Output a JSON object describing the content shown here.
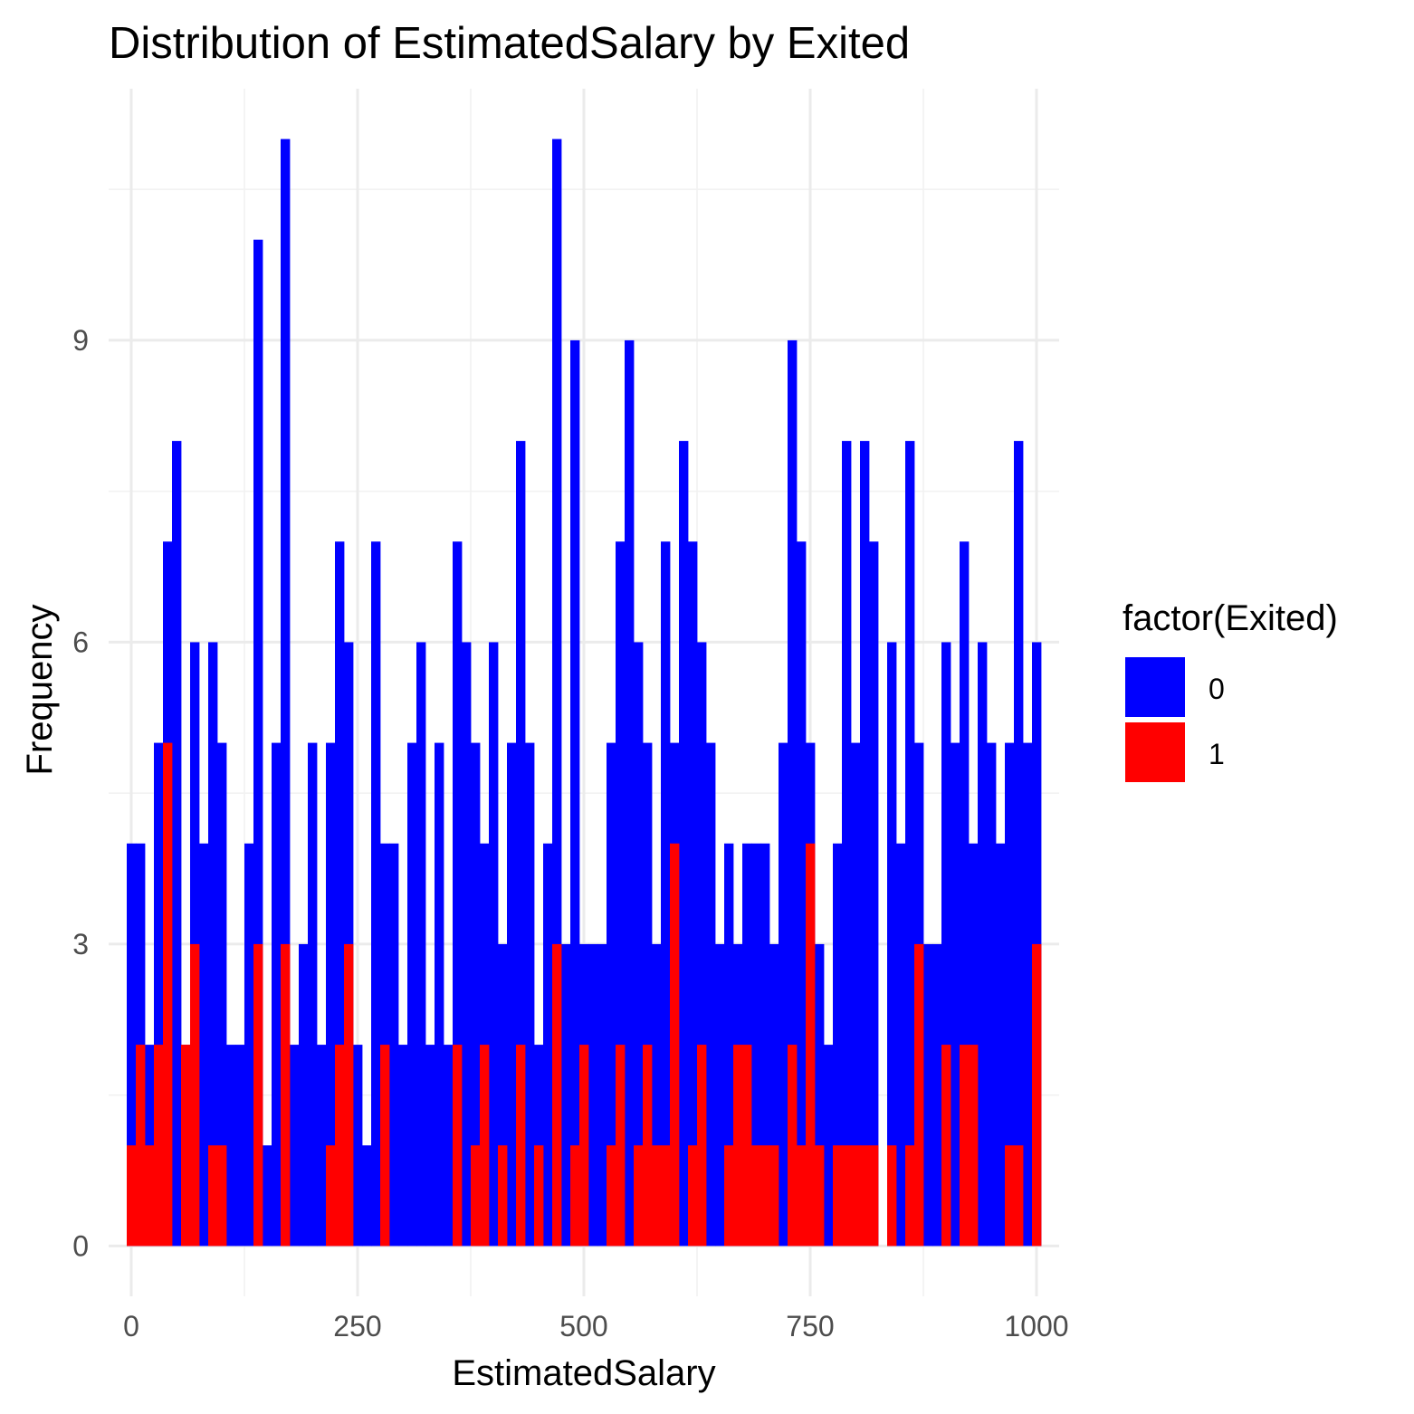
{
  "chart_data": {
    "type": "bar",
    "title": "Distribution of EstimatedSalary by Exited",
    "xlabel": "EstimatedSalary",
    "ylabel": "Frequency",
    "xlim": [
      -25,
      1025
    ],
    "ylim": [
      -0.5,
      11.5
    ],
    "x_ticks": [
      0,
      250,
      500,
      750,
      1000
    ],
    "y_ticks": [
      0,
      3,
      6,
      9
    ],
    "binwidth": 10,
    "bin_centers": [
      0,
      10,
      20,
      30,
      40,
      50,
      60,
      70,
      80,
      90,
      100,
      110,
      120,
      130,
      140,
      150,
      160,
      170,
      180,
      190,
      200,
      210,
      220,
      230,
      240,
      250,
      260,
      270,
      280,
      290,
      300,
      310,
      320,
      330,
      340,
      350,
      360,
      370,
      380,
      390,
      400,
      410,
      420,
      430,
      440,
      450,
      460,
      470,
      480,
      490,
      500,
      510,
      520,
      530,
      540,
      550,
      560,
      570,
      580,
      590,
      600,
      610,
      620,
      630,
      640,
      650,
      660,
      670,
      680,
      690,
      700,
      710,
      720,
      730,
      740,
      750,
      760,
      770,
      780,
      790,
      800,
      810,
      820,
      830,
      840,
      850,
      860,
      870,
      880,
      890,
      900,
      910,
      920,
      930,
      940,
      950,
      960,
      970,
      980,
      990,
      1000
    ],
    "position": "identity",
    "grid": true,
    "legend_title": "factor(Exited)",
    "legend_position": "right",
    "series": [
      {
        "name": "0",
        "color": "#0000FF",
        "values": [
          4,
          4,
          2,
          5,
          7,
          8,
          2,
          6,
          4,
          6,
          5,
          2,
          2,
          4,
          10,
          1,
          5,
          11,
          2,
          3,
          5,
          2,
          5,
          7,
          6,
          2,
          1,
          7,
          4,
          4,
          2,
          5,
          6,
          2,
          5,
          2,
          7,
          6,
          5,
          4,
          6,
          3,
          5,
          8,
          5,
          2,
          4,
          11,
          3,
          9,
          3,
          3,
          3,
          5,
          7,
          9,
          6,
          5,
          3,
          7,
          5,
          8,
          7,
          6,
          5,
          3,
          4,
          3,
          4,
          4,
          4,
          3,
          5,
          9,
          7,
          5,
          3,
          2,
          4,
          8,
          5,
          8,
          7,
          0,
          6,
          4,
          8,
          5,
          3,
          3,
          6,
          5,
          7,
          4,
          6,
          5,
          4,
          5,
          8,
          5,
          6
        ]
      },
      {
        "name": "1",
        "color": "#FF0000",
        "values": [
          1,
          2,
          1,
          2,
          5,
          0,
          2,
          3,
          0,
          1,
          1,
          0,
          0,
          0,
          3,
          0,
          0,
          3,
          0,
          0,
          0,
          0,
          1,
          2,
          3,
          0,
          0,
          0,
          2,
          0,
          0,
          0,
          0,
          0,
          0,
          0,
          2,
          0,
          1,
          2,
          0,
          1,
          0,
          2,
          0,
          1,
          0,
          3,
          0,
          1,
          2,
          0,
          0,
          1,
          2,
          0,
          1,
          2,
          1,
          1,
          4,
          0,
          1,
          2,
          0,
          0,
          1,
          2,
          2,
          1,
          1,
          1,
          0,
          2,
          1,
          4,
          1,
          0,
          1,
          1,
          1,
          1,
          1,
          0,
          1,
          0,
          1,
          3,
          0,
          0,
          2,
          0,
          2,
          2,
          0,
          0,
          0,
          1,
          1,
          0,
          3
        ]
      }
    ]
  }
}
